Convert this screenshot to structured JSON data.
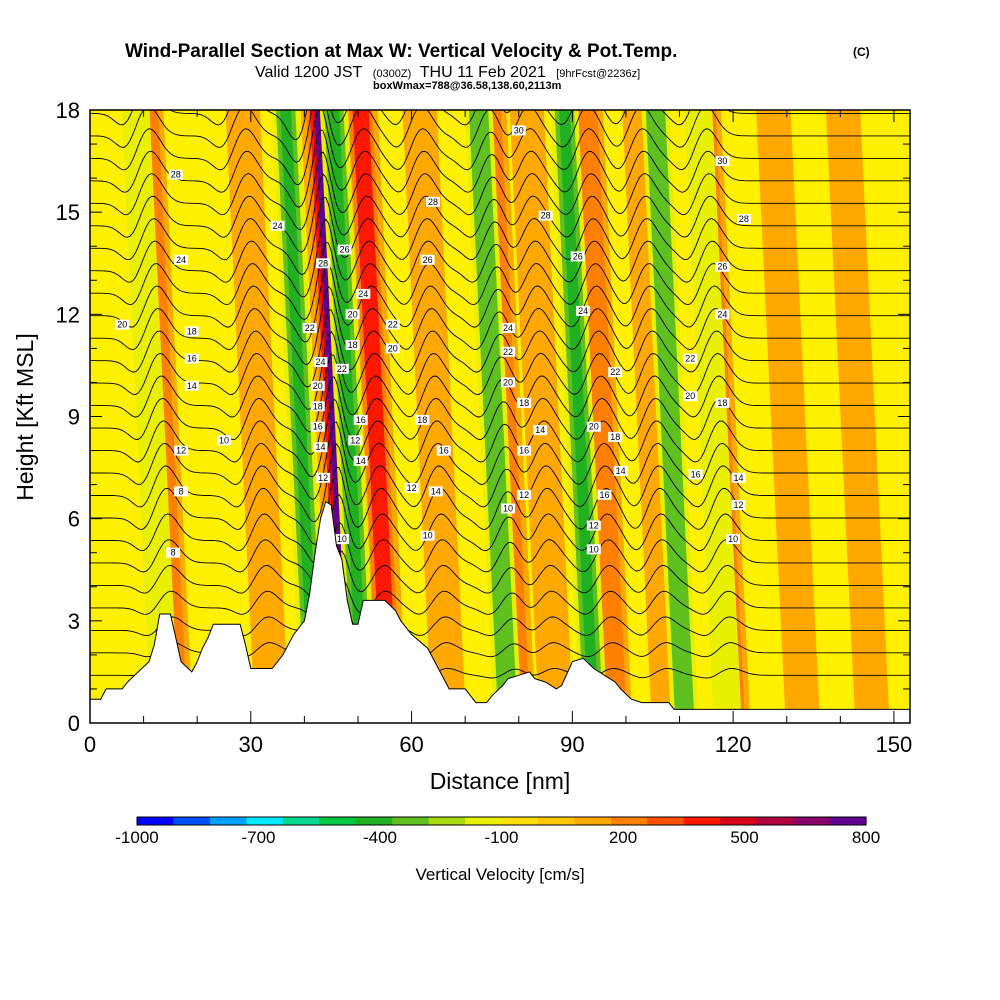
{
  "title": {
    "main": "Wind-Parallel Section at Max W: Vertical Velocity & Pot.Temp.",
    "copyright": "(C)",
    "valid_prefix": "Valid 1200 JST",
    "valid_utc": "(0300Z)",
    "valid_date": "THU 11 Feb 2021",
    "forecast": "[9hrFcst@2236z]",
    "box": "boxWmax=788@36.58,138.60,2113m"
  },
  "chart_data": {
    "type": "heatmap",
    "xlabel": "Distance [nm]",
    "ylabel": "Height [Kft MSL]",
    "xlim": [
      0,
      153
    ],
    "ylim": [
      0,
      18
    ],
    "x_ticks": [
      0,
      30,
      60,
      90,
      120,
      150
    ],
    "y_ticks": [
      0,
      3,
      6,
      9,
      12,
      15,
      18
    ],
    "colorbar": {
      "title": "Vertical Velocity [cm/s]",
      "tick_labels": [
        "-1000",
        "-700",
        "-400",
        "-100",
        "200",
        "500",
        "800"
      ],
      "tick_values": [
        -1000,
        -700,
        -400,
        -100,
        200,
        500,
        800
      ],
      "range": [
        -1000,
        800
      ],
      "colors": [
        "#0000ff",
        "#0050ff",
        "#00a0ff",
        "#00e8ff",
        "#00d890",
        "#00c840",
        "#20b020",
        "#60c020",
        "#a8d810",
        "#e8f000",
        "#ffe000",
        "#ffc800",
        "#ffa800",
        "#ff8000",
        "#ff5000",
        "#ff1800",
        "#d80018",
        "#b00040",
        "#880068",
        "#600090"
      ]
    },
    "terrain_profile_kft": [
      [
        0,
        0.7
      ],
      [
        2,
        0.7
      ],
      [
        3,
        1.0
      ],
      [
        6,
        1.0
      ],
      [
        7,
        1.2
      ],
      [
        9,
        1.5
      ],
      [
        11,
        1.8
      ],
      [
        12,
        2.3
      ],
      [
        13,
        3.2
      ],
      [
        15,
        3.2
      ],
      [
        16,
        2.5
      ],
      [
        17,
        1.8
      ],
      [
        19,
        1.5
      ],
      [
        20,
        1.8
      ],
      [
        21,
        2.2
      ],
      [
        22,
        2.5
      ],
      [
        23,
        2.9
      ],
      [
        28,
        2.9
      ],
      [
        29,
        2.3
      ],
      [
        30,
        1.6
      ],
      [
        34,
        1.6
      ],
      [
        36,
        2.0
      ],
      [
        38,
        2.6
      ],
      [
        40,
        3.0
      ],
      [
        41,
        3.8
      ],
      [
        42,
        5.0
      ],
      [
        43,
        6.0
      ],
      [
        44,
        6.5
      ],
      [
        45,
        6.4
      ],
      [
        46,
        5.2
      ],
      [
        47,
        4.8
      ],
      [
        48,
        3.6
      ],
      [
        49,
        2.9
      ],
      [
        50,
        2.9
      ],
      [
        51,
        3.6
      ],
      [
        55,
        3.6
      ],
      [
        57,
        3.3
      ],
      [
        58,
        3.0
      ],
      [
        60,
        2.6
      ],
      [
        63,
        2.2
      ],
      [
        65,
        1.6
      ],
      [
        67,
        1.0
      ],
      [
        70,
        1.0
      ],
      [
        71,
        0.8
      ],
      [
        72,
        0.6
      ],
      [
        74,
        0.6
      ],
      [
        75,
        0.8
      ],
      [
        77,
        1.1
      ],
      [
        78,
        1.3
      ],
      [
        80,
        1.4
      ],
      [
        82,
        1.5
      ],
      [
        83,
        1.3
      ],
      [
        85,
        1.2
      ],
      [
        87,
        1.0
      ],
      [
        88,
        1.1
      ],
      [
        90,
        1.8
      ],
      [
        92,
        1.9
      ],
      [
        94,
        1.6
      ],
      [
        96,
        1.4
      ],
      [
        98,
        1.2
      ],
      [
        99,
        1.0
      ],
      [
        101,
        0.7
      ],
      [
        103,
        0.6
      ],
      [
        108,
        0.6
      ],
      [
        109,
        0.4
      ],
      [
        153,
        0.4
      ]
    ],
    "updraft_bands_nm": [
      {
        "x": 16,
        "strength": 250
      },
      {
        "x": 34,
        "strength": 120
      },
      {
        "x": 48,
        "strength": 788
      },
      {
        "x": 56,
        "strength": 350
      },
      {
        "x": 67,
        "strength": 150
      },
      {
        "x": 80,
        "strength": 300
      },
      {
        "x": 87,
        "strength": 150
      },
      {
        "x": 98,
        "strength": 250
      },
      {
        "x": 108,
        "strength": 150
      },
      {
        "x": 120,
        "strength": 250
      },
      {
        "x": 133,
        "strength": 120
      },
      {
        "x": 146,
        "strength": 150
      }
    ],
    "downdraft_bands_nm": [
      {
        "x": 14,
        "strength": -180
      },
      {
        "x": 42,
        "strength": -350
      },
      {
        "x": 51,
        "strength": -450
      },
      {
        "x": 78,
        "strength": -200
      },
      {
        "x": 94,
        "strength": -380
      },
      {
        "x": 111,
        "strength": -250
      },
      {
        "x": 119,
        "strength": -150
      }
    ],
    "isentropes": {
      "count": 26,
      "labels": [
        {
          "x": 15.5,
          "y": 5.0,
          "text": "8"
        },
        {
          "x": 17.0,
          "y": 6.8,
          "text": "8"
        },
        {
          "x": 17.0,
          "y": 8.0,
          "text": "12"
        },
        {
          "x": 25.0,
          "y": 8.3,
          "text": "10"
        },
        {
          "x": 19.0,
          "y": 9.9,
          "text": "14"
        },
        {
          "x": 19.0,
          "y": 10.7,
          "text": "16"
        },
        {
          "x": 19.0,
          "y": 11.5,
          "text": "18"
        },
        {
          "x": 6.0,
          "y": 11.7,
          "text": "20"
        },
        {
          "x": 17.0,
          "y": 13.6,
          "text": "24"
        },
        {
          "x": 35.0,
          "y": 14.6,
          "text": "24"
        },
        {
          "x": 16.0,
          "y": 16.1,
          "text": "28"
        },
        {
          "x": 43.5,
          "y": 13.5,
          "text": "28"
        },
        {
          "x": 41.0,
          "y": 11.6,
          "text": "22"
        },
        {
          "x": 43.0,
          "y": 10.6,
          "text": "24"
        },
        {
          "x": 42.5,
          "y": 9.9,
          "text": "20"
        },
        {
          "x": 42.5,
          "y": 9.3,
          "text": "18"
        },
        {
          "x": 42.5,
          "y": 8.7,
          "text": "16"
        },
        {
          "x": 43.0,
          "y": 8.1,
          "text": "14"
        },
        {
          "x": 43.5,
          "y": 7.2,
          "text": "12"
        },
        {
          "x": 47.0,
          "y": 5.4,
          "text": "10"
        },
        {
          "x": 47.5,
          "y": 13.9,
          "text": "26"
        },
        {
          "x": 47.0,
          "y": 10.4,
          "text": "22"
        },
        {
          "x": 51.0,
          "y": 12.6,
          "text": "24"
        },
        {
          "x": 49.0,
          "y": 12.0,
          "text": "20"
        },
        {
          "x": 49.0,
          "y": 11.1,
          "text": "18"
        },
        {
          "x": 50.5,
          "y": 8.9,
          "text": "16"
        },
        {
          "x": 49.5,
          "y": 8.3,
          "text": "12"
        },
        {
          "x": 50.5,
          "y": 7.7,
          "text": "14"
        },
        {
          "x": 56.5,
          "y": 11.7,
          "text": "22"
        },
        {
          "x": 56.5,
          "y": 11.0,
          "text": "20"
        },
        {
          "x": 62.0,
          "y": 8.9,
          "text": "18"
        },
        {
          "x": 66.0,
          "y": 8.0,
          "text": "16"
        },
        {
          "x": 60.0,
          "y": 6.9,
          "text": "12"
        },
        {
          "x": 64.5,
          "y": 6.8,
          "text": "14"
        },
        {
          "x": 63.0,
          "y": 5.5,
          "text": "10"
        },
        {
          "x": 64.0,
          "y": 15.3,
          "text": "28"
        },
        {
          "x": 63.0,
          "y": 13.6,
          "text": "26"
        },
        {
          "x": 80.0,
          "y": 17.4,
          "text": "30"
        },
        {
          "x": 85.0,
          "y": 14.9,
          "text": "28"
        },
        {
          "x": 78.0,
          "y": 11.6,
          "text": "24"
        },
        {
          "x": 78.0,
          "y": 10.9,
          "text": "22"
        },
        {
          "x": 78.0,
          "y": 10.0,
          "text": "20"
        },
        {
          "x": 81.0,
          "y": 9.4,
          "text": "18"
        },
        {
          "x": 81.0,
          "y": 8.0,
          "text": "16"
        },
        {
          "x": 84.0,
          "y": 8.6,
          "text": "14"
        },
        {
          "x": 81.0,
          "y": 6.7,
          "text": "12"
        },
        {
          "x": 78.0,
          "y": 6.3,
          "text": "10"
        },
        {
          "x": 91.0,
          "y": 13.7,
          "text": "26"
        },
        {
          "x": 92.0,
          "y": 12.1,
          "text": "24"
        },
        {
          "x": 98.0,
          "y": 10.3,
          "text": "22"
        },
        {
          "x": 94.0,
          "y": 8.7,
          "text": "20"
        },
        {
          "x": 98.0,
          "y": 8.4,
          "text": "18"
        },
        {
          "x": 99.0,
          "y": 7.4,
          "text": "14"
        },
        {
          "x": 96.0,
          "y": 6.7,
          "text": "16"
        },
        {
          "x": 94.0,
          "y": 5.8,
          "text": "12"
        },
        {
          "x": 94.0,
          "y": 5.1,
          "text": "10"
        },
        {
          "x": 118.0,
          "y": 16.5,
          "text": "30"
        },
        {
          "x": 122.0,
          "y": 14.8,
          "text": "28"
        },
        {
          "x": 118.0,
          "y": 13.4,
          "text": "26"
        },
        {
          "x": 118.0,
          "y": 12.0,
          "text": "24"
        },
        {
          "x": 112.0,
          "y": 10.7,
          "text": "22"
        },
        {
          "x": 112.0,
          "y": 9.6,
          "text": "20"
        },
        {
          "x": 118.0,
          "y": 9.4,
          "text": "18"
        },
        {
          "x": 113.0,
          "y": 7.3,
          "text": "16"
        },
        {
          "x": 121.0,
          "y": 7.2,
          "text": "14"
        },
        {
          "x": 121.0,
          "y": 6.4,
          "text": "12"
        },
        {
          "x": 120.0,
          "y": 5.4,
          "text": "10"
        }
      ]
    }
  }
}
